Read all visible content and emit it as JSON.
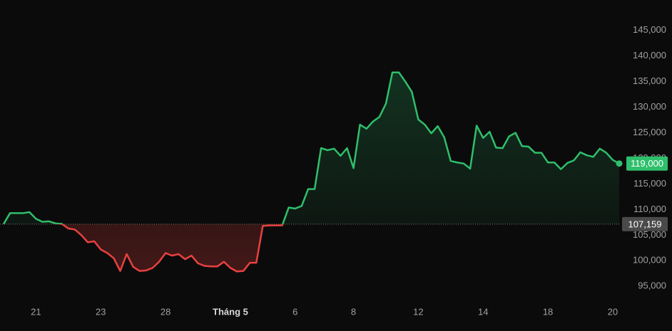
{
  "chart_data": {
    "type": "line",
    "categories": [
      null,
      null,
      null,
      null,
      null,
      "21",
      null,
      null,
      null,
      null,
      null,
      null,
      null,
      null,
      null,
      "23",
      null,
      null,
      null,
      null,
      null,
      null,
      null,
      null,
      null,
      "28",
      null,
      null,
      null,
      null,
      null,
      null,
      null,
      null,
      null,
      "Tháng 5",
      null,
      null,
      null,
      null,
      null,
      null,
      null,
      null,
      null,
      "6",
      null,
      null,
      null,
      null,
      null,
      null,
      null,
      null,
      "8",
      null,
      null,
      null,
      null,
      null,
      null,
      null,
      null,
      null,
      "12",
      null,
      null,
      null,
      null,
      null,
      null,
      null,
      null,
      null,
      "14",
      null,
      null,
      null,
      null,
      null,
      null,
      null,
      null,
      null,
      "18",
      null,
      null,
      null,
      null,
      null,
      null,
      null,
      null,
      null,
      "20",
      null
    ],
    "values": [
      107159,
      109300,
      109300,
      109300,
      109500,
      108200,
      107600,
      107700,
      107300,
      107200,
      106300,
      106100,
      105000,
      103600,
      103800,
      102200,
      101500,
      100500,
      98000,
      101300,
      98800,
      98000,
      98100,
      98600,
      99800,
      101500,
      101000,
      101300,
      100300,
      101000,
      99500,
      99000,
      98900,
      98900,
      99800,
      98600,
      97900,
      98000,
      99600,
      99600,
      106800,
      106900,
      106900,
      106900,
      110400,
      110200,
      110700,
      114000,
      114000,
      122000,
      121600,
      121900,
      120500,
      122000,
      118100,
      126600,
      125800,
      127200,
      128100,
      130700,
      136800,
      136800,
      135000,
      133000,
      127600,
      126600,
      124900,
      126300,
      124100,
      119500,
      119200,
      119000,
      118000,
      126400,
      124000,
      125200,
      122100,
      122000,
      124300,
      125000,
      122400,
      122300,
      121100,
      121100,
      119200,
      119200,
      117900,
      119100,
      119600,
      121200,
      120600,
      120300,
      121900,
      121100,
      119700,
      119000
    ],
    "last_value_label": "119,000",
    "baseline": {
      "value": 107159,
      "label": "107,159"
    },
    "ylim": [
      91000,
      149000
    ],
    "yticks": [
      {
        "value": 95000,
        "label": "95,000"
      },
      {
        "value": 100000,
        "label": "100,000"
      },
      {
        "value": 105000,
        "label": "105,000"
      },
      {
        "value": 110000,
        "label": "110,000"
      },
      {
        "value": 115000,
        "label": "115,000"
      },
      {
        "value": 120000,
        "label": "120,000"
      },
      {
        "value": 125000,
        "label": "125,000"
      },
      {
        "value": 130000,
        "label": "130,000"
      },
      {
        "value": 135000,
        "label": "135,000"
      },
      {
        "value": 140000,
        "label": "140,000"
      },
      {
        "value": 145000,
        "label": "145,000"
      }
    ],
    "color_above": "#2fbf6c",
    "color_below": "#e8413f"
  }
}
